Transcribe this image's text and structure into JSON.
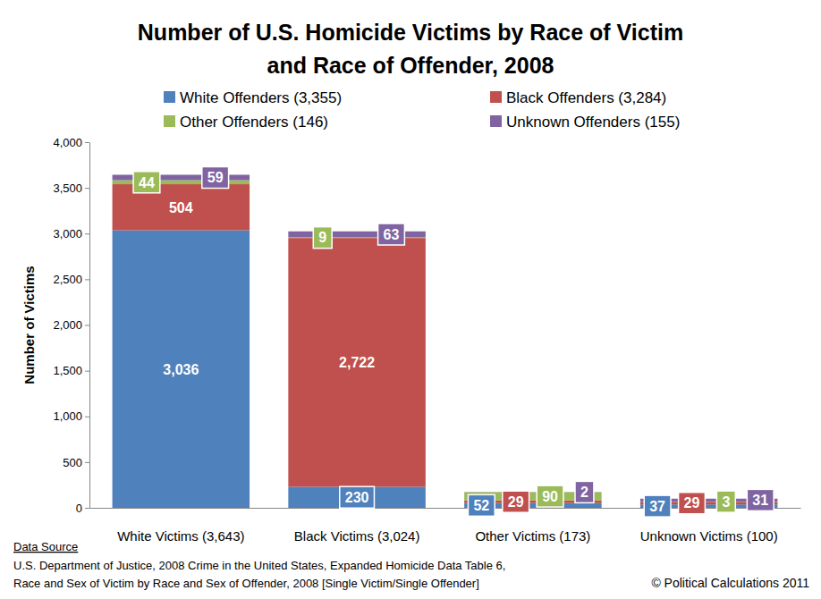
{
  "chart_data": {
    "type": "bar",
    "title": [
      "Number of U.S. Homicide Victims by Race of Victim",
      "and Race of Offender, 2008"
    ],
    "y_label": "Number of Victims",
    "categories": [
      "White Victims (3,643)",
      "Black Victims (3,024)",
      "Other Victims (173)",
      "Unknown Victims (100)"
    ],
    "series": [
      {
        "name": "White Offenders (3,355)",
        "color": "#4f81bd",
        "values": [
          3036,
          230,
          52,
          37
        ],
        "value_labels": [
          "3,036",
          "230",
          "52",
          "37"
        ]
      },
      {
        "name": "Black Offenders (3,284)",
        "color": "#c0504d",
        "values": [
          504,
          2722,
          29,
          29
        ],
        "value_labels": [
          "504",
          "2,722",
          "29",
          "29"
        ]
      },
      {
        "name": "Other Offenders (146)",
        "color": "#9bbb59",
        "values": [
          44,
          9,
          90,
          3
        ],
        "value_labels": [
          "44",
          "9",
          "90",
          "3"
        ]
      },
      {
        "name": "Unknown Offenders (155)",
        "color": "#8064a2",
        "values": [
          59,
          63,
          2,
          31
        ],
        "value_labels": [
          "59",
          "63",
          "2",
          "31"
        ]
      }
    ],
    "ylim": [
      0,
      4000
    ],
    "yticks": [
      0,
      500,
      {
        "value": 1000,
        "label": "1,000"
      },
      {
        "value": 1500,
        "label": "1,500"
      },
      {
        "value": 2000,
        "label": "2,000"
      },
      {
        "value": 2500,
        "label": "2,500"
      },
      {
        "value": 3000,
        "label": "3,000"
      },
      {
        "value": 3500,
        "label": "3,500"
      },
      {
        "value": 4000,
        "label": "4,000"
      }
    ],
    "stacked": true,
    "data_labels": true,
    "legend": "top",
    "grid": false,
    "source": {
      "label": "Data Source",
      "lines": [
        "U.S. Department of Justice, 2008 Crime in the United States, Expanded Homicide Data Table 6,",
        "Race and Sex of Victim by Race and Sex of Offender, 2008 [Single Victim/Single Offender]"
      ]
    },
    "credit": "© Political Calculations 2011"
  }
}
